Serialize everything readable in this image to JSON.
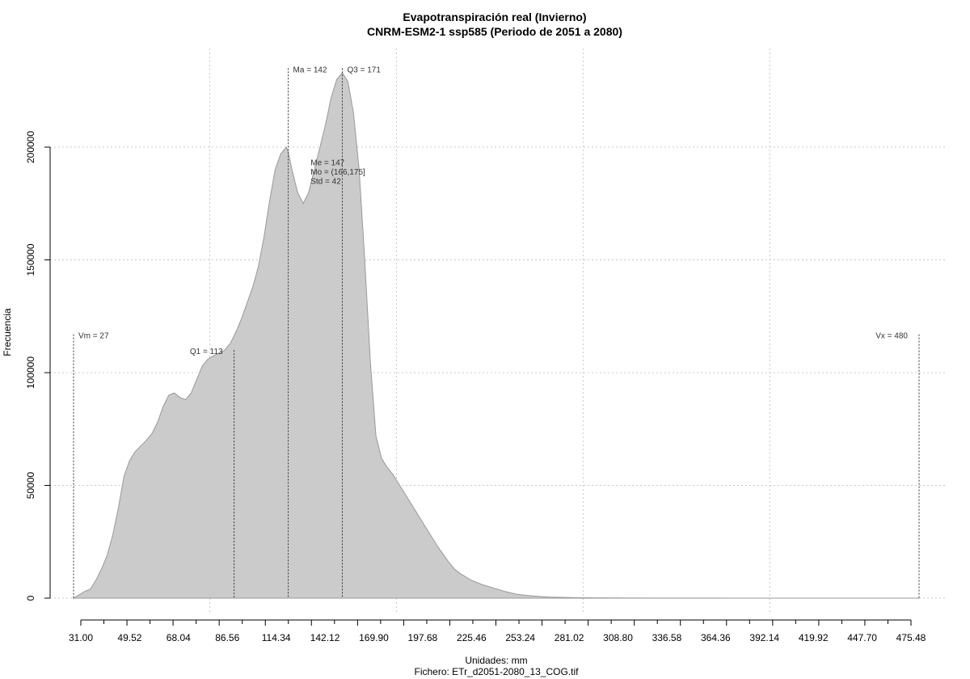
{
  "chart_data": {
    "type": "area",
    "title": "Evapotranspiración real (Invierno)",
    "subtitle": "CNRM-ESM2-1 ssp585 (Periodo de 2051 a 2080)",
    "xlabel": "Unidades: mm",
    "ylabel": "Frecuencia",
    "footer": "Fichero: ETr_d2051-2080_13_COG.tif",
    "xlim": [
      27,
      480
    ],
    "ylim": [
      0,
      235000
    ],
    "grid": true,
    "fill_color": "#cbcbcb",
    "line_color": "#999999",
    "x_ticks": [
      "31.00",
      "49.52",
      "68.04",
      "86.56",
      "114.34",
      "142.12",
      "169.90",
      "197.68",
      "225.46",
      "253.24",
      "281.02",
      "308.80",
      "336.58",
      "364.36",
      "392.14",
      "419.92",
      "447.70",
      "475.48"
    ],
    "y_ticks": [
      "0",
      "50000",
      "100000",
      "150000",
      "200000"
    ],
    "y_tick_values": [
      0,
      50000,
      100000,
      150000,
      200000
    ],
    "x_grid_values": [
      100,
      200,
      300,
      400
    ],
    "x": [
      27,
      30,
      33,
      36,
      39,
      42,
      45,
      48,
      51,
      54,
      57,
      60,
      63,
      66,
      69,
      72,
      75,
      78,
      81,
      84,
      87,
      90,
      93,
      96,
      99,
      102,
      105,
      108,
      111,
      114,
      117,
      120,
      123,
      126,
      129,
      132,
      135,
      138,
      141,
      142,
      144,
      147,
      150,
      153,
      156,
      159,
      162,
      165,
      168,
      171,
      174,
      177,
      180,
      183,
      186,
      189,
      192,
      195,
      198,
      201,
      204,
      207,
      210,
      213,
      216,
      219,
      222,
      225,
      228,
      231,
      234,
      240,
      246,
      252,
      258,
      264,
      270,
      276,
      282,
      290,
      300,
      320,
      340,
      360,
      380,
      400,
      420,
      440,
      460,
      480
    ],
    "values": [
      0,
      1500,
      3000,
      4000,
      8000,
      13000,
      19000,
      28000,
      40000,
      54000,
      61000,
      65000,
      67500,
      70000,
      73000,
      78000,
      85000,
      90000,
      91000,
      89000,
      88000,
      91000,
      97000,
      103000,
      106000,
      107500,
      108500,
      110000,
      113000,
      118000,
      124000,
      131000,
      138000,
      147000,
      160000,
      176000,
      190000,
      197000,
      200000,
      198000,
      190000,
      180000,
      175000,
      180000,
      190000,
      200000,
      210000,
      222000,
      230000,
      233000,
      229000,
      215000,
      190000,
      150000,
      105000,
      72000,
      62000,
      58000,
      55000,
      51000,
      47000,
      43000,
      39000,
      35000,
      31000,
      27000,
      23000,
      19500,
      16000,
      13000,
      11000,
      8000,
      6000,
      4500,
      3000,
      1800,
      1200,
      800,
      500,
      300,
      200,
      100,
      50,
      30,
      20,
      10,
      5,
      2,
      1,
      0
    ],
    "markers": [
      {
        "x": 27,
        "label": "Vm = 27",
        "top": 117000,
        "side": "right"
      },
      {
        "x": 113,
        "label": "Q1 = 113",
        "top": 110000,
        "side": "left"
      },
      {
        "x": 142,
        "label": "Ma = 142",
        "top": 235000,
        "side": "right"
      },
      {
        "x": 171,
        "label": "Q3 = 171",
        "top": 235000,
        "side": "right"
      },
      {
        "x": 480,
        "label": "Vx = 480",
        "top": 117000,
        "side": "left"
      }
    ],
    "stats": [
      "Me = 147",
      "Mo = (166,175]",
      "Std = 42"
    ],
    "stats_anchor": {
      "x": 154,
      "y": 192000
    }
  }
}
